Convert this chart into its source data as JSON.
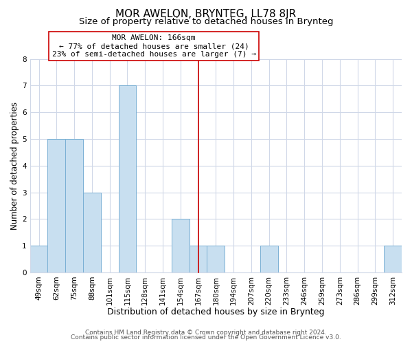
{
  "title": "MOR AWELON, BRYNTEG, LL78 8JR",
  "subtitle": "Size of property relative to detached houses in Brynteg",
  "xlabel": "Distribution of detached houses by size in Brynteg",
  "ylabel": "Number of detached properties",
  "footer_lines": [
    "Contains HM Land Registry data © Crown copyright and database right 2024.",
    "Contains public sector information licensed under the Open Government Licence v3.0."
  ],
  "bin_labels": [
    "49sqm",
    "62sqm",
    "75sqm",
    "88sqm",
    "101sqm",
    "115sqm",
    "128sqm",
    "141sqm",
    "154sqm",
    "167sqm",
    "180sqm",
    "194sqm",
    "207sqm",
    "220sqm",
    "233sqm",
    "246sqm",
    "259sqm",
    "273sqm",
    "286sqm",
    "299sqm",
    "312sqm"
  ],
  "bar_heights": [
    1,
    5,
    5,
    3,
    0,
    7,
    0,
    0,
    2,
    1,
    1,
    0,
    0,
    1,
    0,
    0,
    0,
    0,
    0,
    0,
    1
  ],
  "bar_color": "#c8dff0",
  "bar_edge_color": "#7ab0d4",
  "highlight_bar_index": 9,
  "highlight_line_color": "#cc0000",
  "annotation_title": "MOR AWELON: 166sqm",
  "annotation_line1": "← 77% of detached houses are smaller (24)",
  "annotation_line2": "23% of semi-detached houses are larger (7) →",
  "annotation_box_color": "#ffffff",
  "annotation_border_color": "#cc0000",
  "ylim": [
    0,
    8
  ],
  "yticks": [
    0,
    1,
    2,
    3,
    4,
    5,
    6,
    7,
    8
  ],
  "grid_color": "#d0d8e8",
  "background_color": "#ffffff",
  "title_fontsize": 11,
  "subtitle_fontsize": 9.5,
  "xlabel_fontsize": 9,
  "ylabel_fontsize": 8.5,
  "tick_fontsize": 7.5,
  "annotation_fontsize": 8,
  "footer_fontsize": 6.5
}
